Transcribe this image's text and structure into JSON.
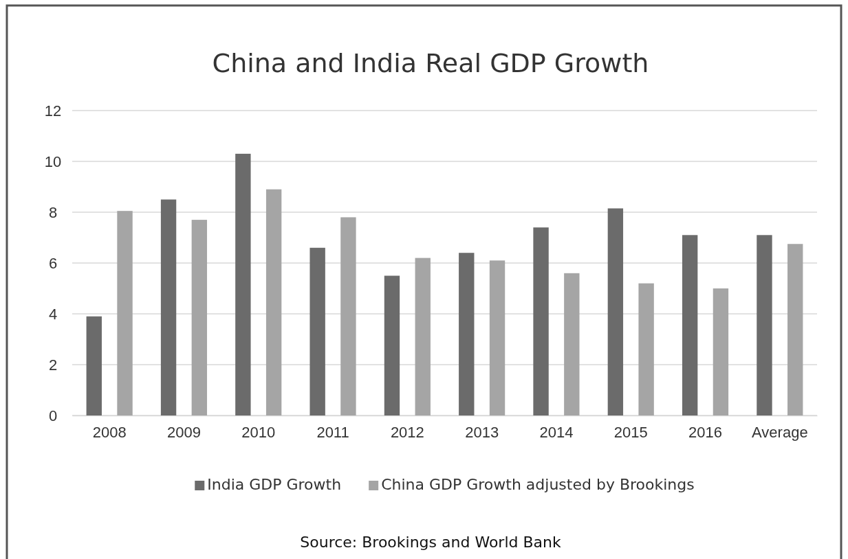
{
  "chart_data": {
    "type": "bar",
    "title": "China and India Real GDP Growth",
    "categories": [
      "2008",
      "2009",
      "2010",
      "2011",
      "2012",
      "2013",
      "2014",
      "2015",
      "2016",
      "Average"
    ],
    "series": [
      {
        "name": "India GDP Growth",
        "color": "#6b6b6b",
        "values": [
          3.9,
          8.5,
          10.3,
          6.6,
          5.5,
          6.4,
          7.4,
          8.15,
          7.1,
          7.1
        ]
      },
      {
        "name": "China GDP Growth adjusted by Brookings",
        "color": "#a5a5a5",
        "values": [
          8.05,
          7.7,
          8.9,
          7.8,
          6.2,
          6.1,
          5.6,
          5.2,
          5.0,
          6.75
        ]
      }
    ],
    "ylim": [
      0,
      12
    ],
    "yticks": [
      0,
      2,
      4,
      6,
      8,
      10,
      12
    ],
    "grid": "y",
    "legend": "bottom",
    "annotations": [
      "Source: Brookings and World Bank"
    ]
  }
}
